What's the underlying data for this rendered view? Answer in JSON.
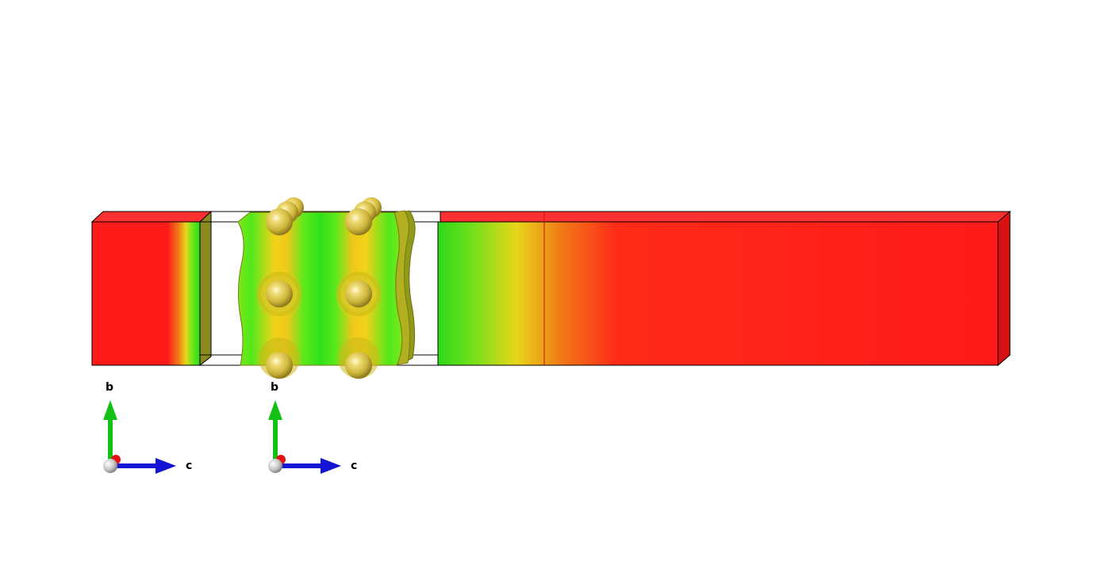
{
  "axes_widgets": [
    {
      "up_label": "b",
      "right_label": "c"
    },
    {
      "up_label": "b",
      "right_label": "c"
    }
  ],
  "colors": {
    "slab_red": "#ff1a1a",
    "iso_green": "#3ee81a",
    "iso_yellow": "#f2d21a",
    "atom_gold": "#e8d050",
    "axis_b": "#12c212",
    "axis_c": "#1414d2",
    "axis_a": "#e01212",
    "origin_sphere": "#c8c8c8"
  }
}
